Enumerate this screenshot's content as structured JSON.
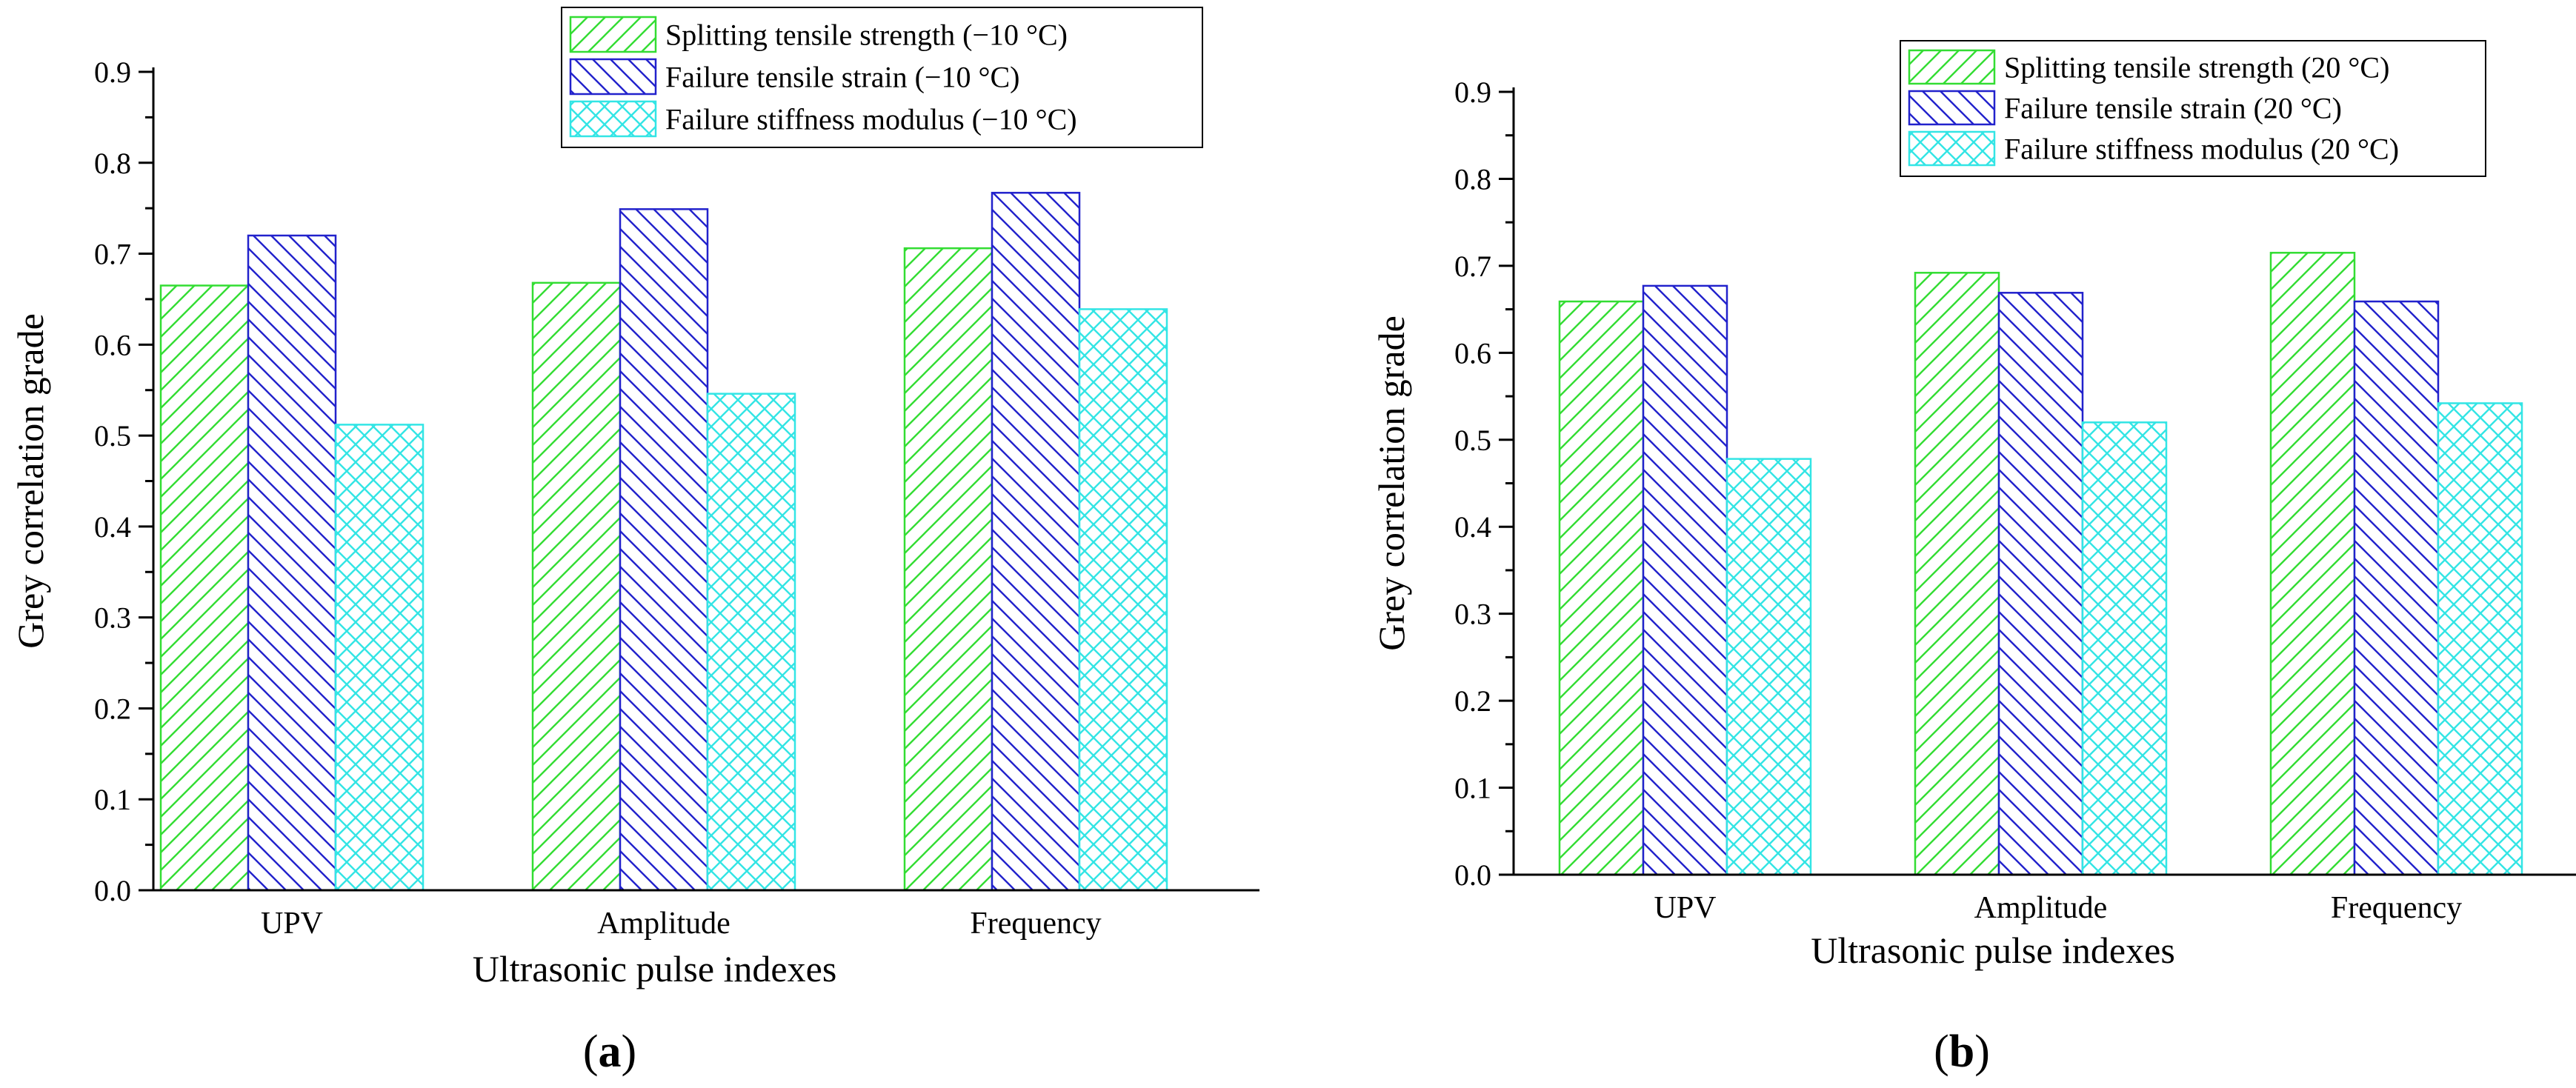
{
  "chart_data": [
    {
      "panel_label": "(a)",
      "panel_letter": "a",
      "type": "bar",
      "title": "",
      "xlabel": "Ultrasonic pulse indexes",
      "ylabel": "Grey correlation grade",
      "categories": [
        "UPV",
        "Amplitude",
        "Frequency"
      ],
      "ylim": [
        0,
        0.9
      ],
      "yticks": [
        "0.0",
        "0.1",
        "0.2",
        "0.3",
        "0.4",
        "0.5",
        "0.6",
        "0.7",
        "0.8",
        "0.9"
      ],
      "legend_position": "top-right",
      "series": [
        {
          "name": "Splitting tensile strength (−10 °C)",
          "values": [
            0.665,
            0.668,
            0.706
          ],
          "color": "#33dd33",
          "pattern": "diag-up"
        },
        {
          "name": "Failure tensile strain  (−10 °C)",
          "values": [
            0.72,
            0.749,
            0.767
          ],
          "color": "#2222cc",
          "pattern": "diag-down"
        },
        {
          "name": "Failure stiffness modulus  (−10 °C)",
          "values": [
            0.512,
            0.546,
            0.639
          ],
          "color": "#33e5e5",
          "pattern": "cross"
        }
      ]
    },
    {
      "panel_label": "(b)",
      "panel_letter": "b",
      "type": "bar",
      "title": "",
      "xlabel": "Ultrasonic pulse indexes",
      "ylabel": "Grey correlation grade",
      "categories": [
        "UPV",
        "Amplitude",
        "Frequency"
      ],
      "ylim": [
        0,
        0.9
      ],
      "yticks": [
        "0.0",
        "0.1",
        "0.2",
        "0.3",
        "0.4",
        "0.5",
        "0.6",
        "0.7",
        "0.8",
        "0.9"
      ],
      "legend_position": "top-right",
      "series": [
        {
          "name": "Splitting tensile strength (20 °C)",
          "values": [
            0.659,
            0.692,
            0.715
          ],
          "color": "#33dd33",
          "pattern": "diag-up"
        },
        {
          "name": "Failure tensile strain  (20 °C)",
          "values": [
            0.677,
            0.669,
            0.659
          ],
          "color": "#2222cc",
          "pattern": "diag-down"
        },
        {
          "name": "Failure stiffness modulus  (20 °C)",
          "values": [
            0.478,
            0.52,
            0.542
          ],
          "color": "#33e5e5",
          "pattern": "cross"
        }
      ]
    }
  ]
}
